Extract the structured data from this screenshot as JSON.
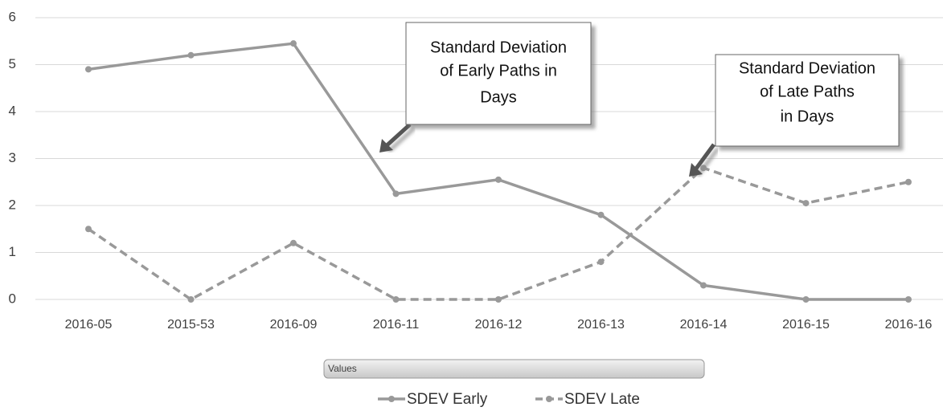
{
  "chart_data": {
    "type": "line",
    "categories": [
      "2016-05",
      "2015-53",
      "2016-09",
      "2016-11",
      "2016-12",
      "2016-13",
      "2016-14",
      "2016-15",
      "2016-16"
    ],
    "series": [
      {
        "name": "SDEV Early",
        "color": "#999999",
        "dash": false,
        "values": [
          4.9,
          5.2,
          5.45,
          2.25,
          2.55,
          1.8,
          0.3,
          0,
          0
        ]
      },
      {
        "name": "SDEV Late",
        "color": "#999999",
        "dash": true,
        "values": [
          1.5,
          0,
          1.2,
          0,
          0,
          0.8,
          2.8,
          2.05,
          2.5
        ]
      }
    ],
    "ylim": [
      0,
      6
    ],
    "yticks": [
      0,
      1,
      2,
      3,
      4,
      5,
      6
    ],
    "grid": true,
    "field_button": "Values",
    "annotations": [
      {
        "lines": [
          "Standard Deviation",
          "of Early Paths in",
          "Days"
        ]
      },
      {
        "lines": [
          "Standard Deviation",
          "of Late Paths",
          "in Days"
        ]
      }
    ]
  }
}
